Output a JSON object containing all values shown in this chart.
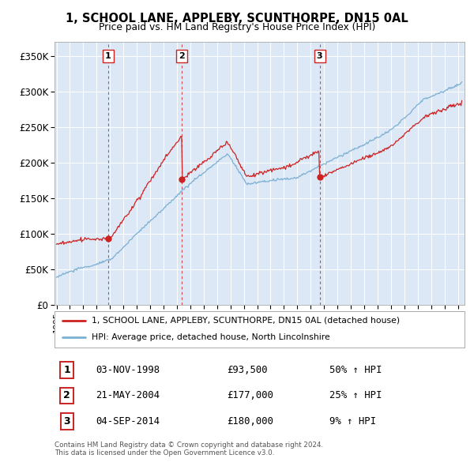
{
  "title": "1, SCHOOL LANE, APPLEBY, SCUNTHORPE, DN15 0AL",
  "subtitle": "Price paid vs. HM Land Registry's House Price Index (HPI)",
  "legend_line1": "1, SCHOOL LANE, APPLEBY, SCUNTHORPE, DN15 0AL (detached house)",
  "legend_line2": "HPI: Average price, detached house, North Lincolnshire",
  "footer1": "Contains HM Land Registry data © Crown copyright and database right 2024.",
  "footer2": "This data is licensed under the Open Government Licence v3.0.",
  "sales": [
    {
      "num": 1,
      "date": "03-NOV-1998",
      "price": 93500,
      "pct": "50%",
      "dir": "↑",
      "year": 1998.84
    },
    {
      "num": 2,
      "date": "21-MAY-2004",
      "price": 177000,
      "pct": "25%",
      "dir": "↑",
      "year": 2004.38
    },
    {
      "num": 3,
      "date": "04-SEP-2014",
      "price": 180000,
      "pct": "9%",
      "dir": "↑",
      "year": 2014.67
    }
  ],
  "hpi_color": "#7bafd4",
  "price_color": "#cc2222",
  "sale_marker_color": "#cc2222",
  "vline_color": "#cc2222",
  "ylim": [
    0,
    370000
  ],
  "yticks": [
    0,
    50000,
    100000,
    150000,
    200000,
    250000,
    300000,
    350000
  ],
  "xlabel_start": 1995,
  "xlabel_end": 2025,
  "background_color": "#ffffff",
  "plot_bg_color": "#dce8f5",
  "grid_color": "#ffffff"
}
